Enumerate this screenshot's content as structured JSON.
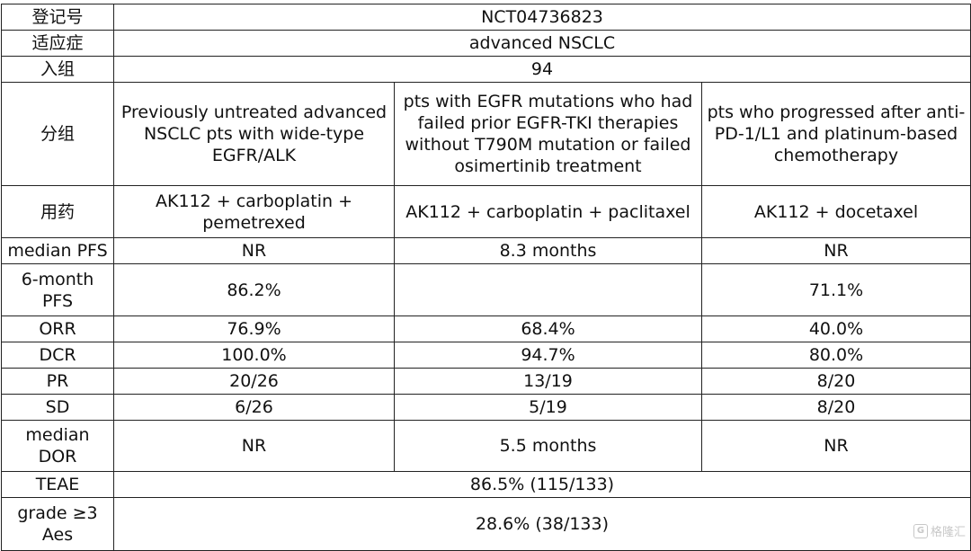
{
  "rows": {
    "reg": {
      "label": "登记号",
      "value": "NCT04736823"
    },
    "indication": {
      "label": "适应症",
      "value": "advanced NSCLC"
    },
    "enrolled": {
      "label": "入组",
      "value": "94"
    },
    "groups": {
      "label": "分组",
      "values": [
        "Previously untreated  advanced NSCLC pts with wide-type EGFR/ALK",
        "pts with EGFR  mutations who had failed prior EGFR-TKI therapies without T790M mutation or  failed osimertinib treatment",
        "pts who progressed  after anti-PD-1/L1 and platinum-based chemotherapy"
      ]
    },
    "drugs": {
      "label": "用药",
      "values": [
        "AK112 + carboplatin + pemetrexed",
        "AK112 + carboplatin +  paclitaxel",
        "AK112 + docetaxel"
      ]
    },
    "median_pfs": {
      "label": "median PFS",
      "values": [
        "NR",
        "8.3 months",
        "NR"
      ]
    },
    "pfs6": {
      "label": "6-month PFS",
      "values": [
        "86.2%",
        "",
        "71.1%"
      ]
    },
    "orr": {
      "label": "ORR",
      "values": [
        "76.9%",
        "68.4%",
        "40.0%"
      ]
    },
    "dcr": {
      "label": "DCR",
      "values": [
        "100.0%",
        "94.7%",
        "80.0%"
      ]
    },
    "pr": {
      "label": "PR",
      "values": [
        "20/26",
        "13/19",
        "8/20"
      ]
    },
    "sd": {
      "label": "SD",
      "values": [
        "6/26",
        "5/19",
        "8/20"
      ]
    },
    "median_dor": {
      "label": "median DOR",
      "values": [
        "NR",
        "5.5 months",
        "NR"
      ]
    },
    "teae": {
      "label": "TEAE",
      "value": "86.5% (115/133)"
    },
    "grade3": {
      "label": "grade ≥3 Aes",
      "value": "28.6% (38/133)"
    }
  },
  "watermark": {
    "text": "格隆汇",
    "icon": "gelonghui-logo-icon"
  }
}
